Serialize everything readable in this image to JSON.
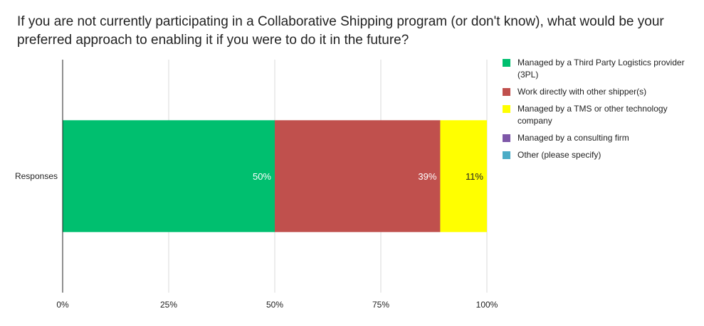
{
  "chart_data": {
    "type": "bar",
    "orientation": "horizontal",
    "stacked": true,
    "title": "If you are not currently participating in a Collaborative Shipping program (or don't know), what would be your preferred approach to enabling it if you were to do it in the future?",
    "categories": [
      "Responses"
    ],
    "x_ticks": [
      "0%",
      "25%",
      "50%",
      "75%",
      "100%"
    ],
    "xlim": [
      0,
      100
    ],
    "grid": true,
    "legend_position": "right",
    "series": [
      {
        "name": "Managed by a Third Party Logistics provider (3PL)",
        "values": [
          50
        ],
        "label": "50%",
        "color": "#00BF6F",
        "label_color": "#ffffff"
      },
      {
        "name": "Work directly with other shipper(s)",
        "values": [
          39
        ],
        "label": "39%",
        "color": "#C0504D",
        "label_color": "#ffffff"
      },
      {
        "name": "Managed by a TMS or other technology company",
        "values": [
          11
        ],
        "label": "11%",
        "color": "#FFFF00",
        "label_color": "#222222"
      },
      {
        "name": "Managed by a consulting firm",
        "values": [
          0
        ],
        "label": "",
        "color": "#7E57A8",
        "label_color": "#222222"
      },
      {
        "name": "Other (please specify)",
        "values": [
          0
        ],
        "label": "",
        "color": "#4BACC6",
        "label_color": "#222222"
      }
    ]
  }
}
